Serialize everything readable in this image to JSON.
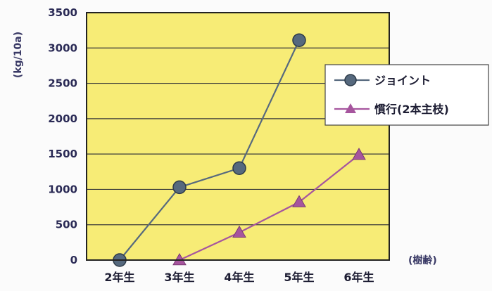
{
  "chart_data": {
    "type": "line",
    "categories": [
      "2年生",
      "3年生",
      "4年生",
      "5年生",
      "6年生"
    ],
    "series": [
      {
        "name": "ジョイント",
        "values": [
          0,
          1030,
          1300,
          3110,
          null
        ],
        "color": "#56697e",
        "marker": "circle"
      },
      {
        "name": "慣行(2本主枝)",
        "values": [
          null,
          0,
          390,
          820,
          1490
        ],
        "color": "#a6559e",
        "marker": "triangle"
      }
    ],
    "yticks": [
      0,
      500,
      1000,
      1500,
      2000,
      2500,
      3000,
      3500
    ],
    "ylim": [
      0,
      3500
    ],
    "ylabel": "(kg/10a)",
    "xlabel": "(樹齢)",
    "grid": true,
    "legend_position": "right",
    "colors": {
      "plot_background": "#f7ec76",
      "grid": "#3a3a3a",
      "axis": "#222222"
    }
  }
}
